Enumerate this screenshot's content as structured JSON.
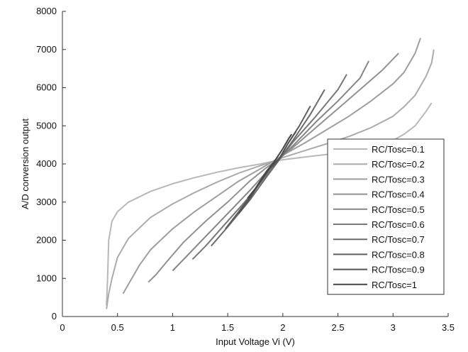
{
  "chart_data": {
    "type": "line",
    "title": "",
    "xlabel": "Input Voltage Vi (V)",
    "ylabel": "A/D conversion output",
    "xlim": [
      0,
      3.5
    ],
    "ylim": [
      0,
      8000
    ],
    "xticks": [
      0,
      0.5,
      1,
      1.5,
      2,
      2.5,
      3,
      3.5
    ],
    "xtick_labels": [
      "0",
      "0.5",
      "1",
      "1.5",
      "2",
      "2.5",
      "3",
      "3.5"
    ],
    "yticks": [
      0,
      1000,
      2000,
      3000,
      4000,
      5000,
      6000,
      7000,
      8000
    ],
    "ytick_labels": [
      "0",
      "1000",
      "2000",
      "3000",
      "4000",
      "5000",
      "6000",
      "7000",
      "8000"
    ],
    "grid": false,
    "legend_position": "bottom-right",
    "series": [
      {
        "name": "RC/Tosc=0.1",
        "color": "#b8b8b8",
        "points": [
          [
            0.4,
            300
          ],
          [
            0.41,
            1000
          ],
          [
            0.42,
            2000
          ],
          [
            0.45,
            2500
          ],
          [
            0.5,
            2750
          ],
          [
            0.6,
            3000
          ],
          [
            0.8,
            3280
          ],
          [
            1.0,
            3480
          ],
          [
            1.2,
            3640
          ],
          [
            1.4,
            3780
          ],
          [
            1.6,
            3900
          ],
          [
            1.8,
            4000
          ],
          [
            1.9,
            4060
          ],
          [
            2.0,
            4110
          ],
          [
            2.2,
            4180
          ],
          [
            2.4,
            4250
          ],
          [
            2.6,
            4330
          ],
          [
            2.8,
            4450
          ],
          [
            3.0,
            4620
          ],
          [
            3.1,
            4780
          ],
          [
            3.2,
            5000
          ],
          [
            3.3,
            5380
          ],
          [
            3.35,
            5600
          ]
        ]
      },
      {
        "name": "RC/Tosc=0.2",
        "color": "#ababab",
        "points": [
          [
            0.4,
            200
          ],
          [
            0.42,
            600
          ],
          [
            0.45,
            1000
          ],
          [
            0.5,
            1550
          ],
          [
            0.6,
            2050
          ],
          [
            0.8,
            2600
          ],
          [
            1.0,
            2950
          ],
          [
            1.2,
            3250
          ],
          [
            1.4,
            3520
          ],
          [
            1.6,
            3760
          ],
          [
            1.8,
            3960
          ],
          [
            1.9,
            4050
          ],
          [
            2.0,
            4170
          ],
          [
            2.2,
            4350
          ],
          [
            2.4,
            4530
          ],
          [
            2.6,
            4720
          ],
          [
            2.8,
            4950
          ],
          [
            3.0,
            5250
          ],
          [
            3.1,
            5500
          ],
          [
            3.2,
            5800
          ],
          [
            3.3,
            6300
          ],
          [
            3.35,
            6650
          ],
          [
            3.37,
            7000
          ]
        ]
      },
      {
        "name": "RC/Tosc=0.3",
        "color": "#9e9e9e",
        "points": [
          [
            0.55,
            600
          ],
          [
            0.6,
            850
          ],
          [
            0.7,
            1350
          ],
          [
            0.8,
            1750
          ],
          [
            1.0,
            2300
          ],
          [
            1.2,
            2750
          ],
          [
            1.4,
            3150
          ],
          [
            1.6,
            3550
          ],
          [
            1.8,
            3880
          ],
          [
            1.9,
            4050
          ],
          [
            2.0,
            4230
          ],
          [
            2.2,
            4550
          ],
          [
            2.4,
            4900
          ],
          [
            2.6,
            5250
          ],
          [
            2.8,
            5650
          ],
          [
            3.0,
            6100
          ],
          [
            3.1,
            6400
          ],
          [
            3.2,
            6900
          ],
          [
            3.25,
            7300
          ]
        ]
      },
      {
        "name": "RC/Tosc=0.4",
        "color": "#919191",
        "points": [
          [
            0.78,
            900
          ],
          [
            0.85,
            1100
          ],
          [
            0.95,
            1450
          ],
          [
            1.1,
            1950
          ],
          [
            1.3,
            2500
          ],
          [
            1.5,
            3000
          ],
          [
            1.7,
            3550
          ],
          [
            1.85,
            3900
          ],
          [
            1.95,
            4100
          ],
          [
            2.1,
            4450
          ],
          [
            2.3,
            4950
          ],
          [
            2.5,
            5450
          ],
          [
            2.7,
            5950
          ],
          [
            2.9,
            6450
          ],
          [
            3.0,
            6750
          ],
          [
            3.05,
            6900
          ]
        ]
      },
      {
        "name": "RC/Tosc=0.5",
        "color": "#858585",
        "points": [
          [
            1.0,
            1200
          ],
          [
            1.1,
            1500
          ],
          [
            1.3,
            2100
          ],
          [
            1.5,
            2700
          ],
          [
            1.7,
            3300
          ],
          [
            1.85,
            3780
          ],
          [
            1.95,
            4080
          ],
          [
            2.1,
            4500
          ],
          [
            2.3,
            5100
          ],
          [
            2.5,
            5650
          ],
          [
            2.7,
            6250
          ],
          [
            2.78,
            6700
          ]
        ]
      },
      {
        "name": "RC/Tosc=0.6",
        "color": "#787878",
        "points": [
          [
            1.18,
            1500
          ],
          [
            1.3,
            1850
          ],
          [
            1.5,
            2500
          ],
          [
            1.7,
            3150
          ],
          [
            1.85,
            3700
          ],
          [
            1.95,
            4050
          ],
          [
            2.1,
            4600
          ],
          [
            2.3,
            5250
          ],
          [
            2.5,
            5950
          ],
          [
            2.58,
            6350
          ]
        ]
      },
      {
        "name": "RC/Tosc=0.7",
        "color": "#6b6b6b",
        "points": [
          [
            1.35,
            1850
          ],
          [
            1.5,
            2350
          ],
          [
            1.7,
            3050
          ],
          [
            1.85,
            3650
          ],
          [
            1.95,
            4040
          ],
          [
            2.1,
            4650
          ],
          [
            2.25,
            5300
          ],
          [
            2.38,
            5950
          ]
        ]
      },
      {
        "name": "RC/Tosc=0.8",
        "color": "#5e5e5e",
        "points": [
          [
            1.48,
            2300
          ],
          [
            1.6,
            2750
          ],
          [
            1.75,
            3350
          ],
          [
            1.87,
            3850
          ],
          [
            1.95,
            4050
          ],
          [
            2.05,
            4550
          ],
          [
            2.15,
            5000
          ],
          [
            2.25,
            5520
          ]
        ]
      },
      {
        "name": "RC/Tosc=0.9",
        "color": "#525252",
        "points": [
          [
            1.6,
            2700
          ],
          [
            1.7,
            3100
          ],
          [
            1.8,
            3550
          ],
          [
            1.9,
            3950
          ],
          [
            1.97,
            4150
          ],
          [
            2.05,
            4550
          ],
          [
            2.12,
            4850
          ]
        ]
      },
      {
        "name": "RC/Tosc=1",
        "color": "#444444",
        "points": [
          [
            1.68,
            3100
          ],
          [
            1.75,
            3350
          ],
          [
            1.85,
            3800
          ],
          [
            1.92,
            4050
          ],
          [
            2.0,
            4400
          ],
          [
            2.05,
            4650
          ],
          [
            2.08,
            4780
          ]
        ]
      }
    ]
  }
}
